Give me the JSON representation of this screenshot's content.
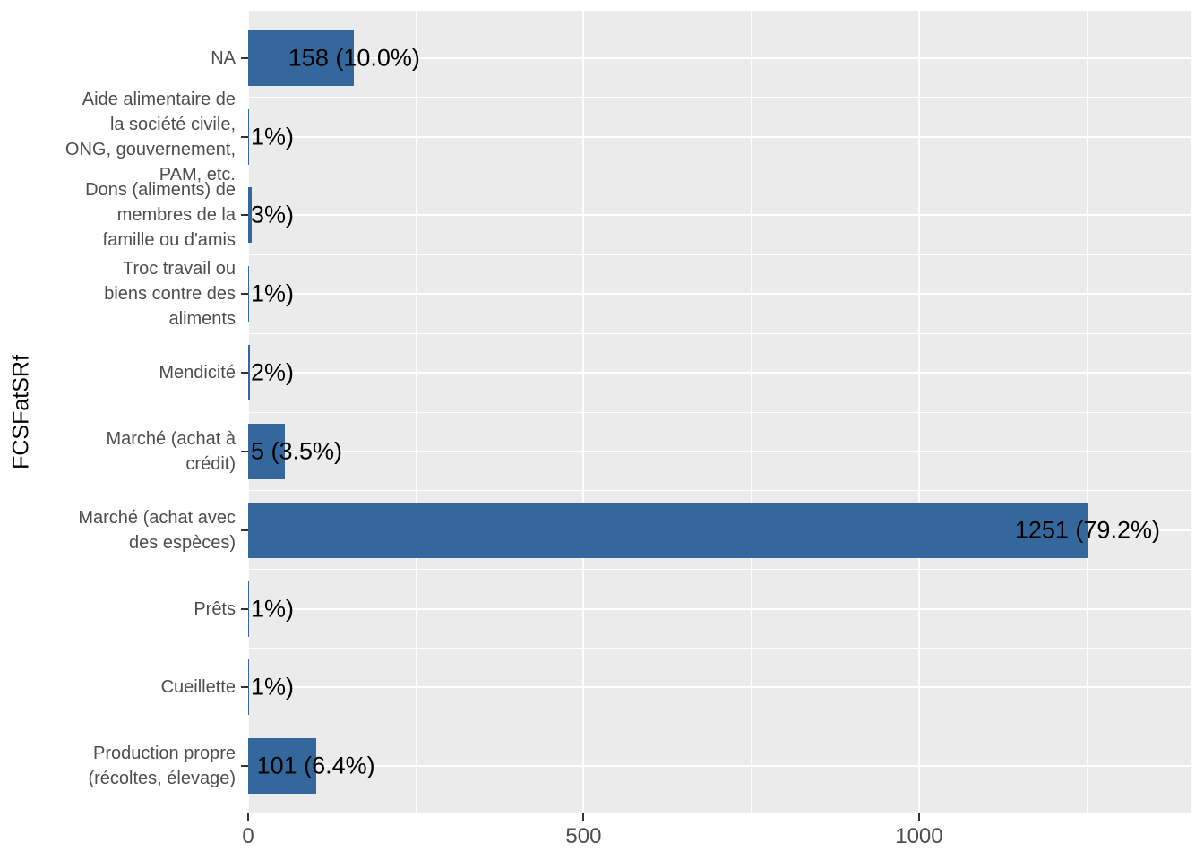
{
  "chart_data": {
    "type": "bar",
    "orientation": "horizontal",
    "title": "",
    "xlabel": "",
    "ylabel": "FCSFatSRf",
    "x_tick_labels": [
      "0",
      "500",
      "1000"
    ],
    "x_tick_values": [
      0,
      500,
      1000
    ],
    "x_minor_gridlines": [
      250,
      750,
      1250
    ],
    "xlim": [
      0,
      1406
    ],
    "grid": "on",
    "legend": "none",
    "colors": {
      "bar": "#34689D",
      "panel_bg": "#EBEBEB",
      "gridline": "#FFFFFF",
      "axis_text": "#4D4D4D",
      "axis_title": "#000000",
      "bar_label": "#000000",
      "tick_mark": "#333333",
      "background": "#FFFFFF"
    },
    "categories": [
      {
        "name": "NA",
        "label_lines": [
          "NA"
        ],
        "value": 158,
        "bar_label": "158 (10.0%)",
        "bar_label_clipped": false
      },
      {
        "name": "Aide alimentaire de la société civile, ONG, gouvernement, PAM, etc.",
        "label_lines": [
          "Aide alimentaire de",
          "la société civile,",
          "ONG, gouvernement,",
          "PAM, etc."
        ],
        "value": 2,
        "bar_label": "1%)",
        "bar_label_clipped": true
      },
      {
        "name": "Dons (aliments) de membres de la famille ou d'amis",
        "label_lines": [
          "Dons (aliments) de",
          "membres de la",
          "famille ou d'amis"
        ],
        "value": 5,
        "bar_label": "3%)",
        "bar_label_clipped": true
      },
      {
        "name": "Troc travail ou biens contre des aliments",
        "label_lines": [
          "Troc travail ou",
          "biens contre des",
          "aliments"
        ],
        "value": 2,
        "bar_label": "1%)",
        "bar_label_clipped": true
      },
      {
        "name": "Mendicité",
        "label_lines": [
          "Mendicité"
        ],
        "value": 3,
        "bar_label": "2%)",
        "bar_label_clipped": true
      },
      {
        "name": "Marché (achat à crédit)",
        "label_lines": [
          "Marché (achat à",
          "crédit)"
        ],
        "value": 55,
        "bar_label": "5 (3.5%)",
        "bar_label_clipped": true
      },
      {
        "name": "Marché (achat avec des espèces)",
        "label_lines": [
          "Marché (achat avec",
          "des espèces)"
        ],
        "value": 1251,
        "bar_label": "1251 (79.2%)",
        "bar_label_clipped": false
      },
      {
        "name": "Prêts",
        "label_lines": [
          "Prêts"
        ],
        "value": 1,
        "bar_label": "1%)",
        "bar_label_clipped": true
      },
      {
        "name": "Cueillette",
        "label_lines": [
          "Cueillette"
        ],
        "value": 2,
        "bar_label": "1%)",
        "bar_label_clipped": true
      },
      {
        "name": "Production propre (récoltes, élevage)",
        "label_lines": [
          "Production propre",
          "(récoltes, élevage)"
        ],
        "value": 101,
        "bar_label": "101 (6.4%)",
        "bar_label_clipped": false
      }
    ]
  }
}
